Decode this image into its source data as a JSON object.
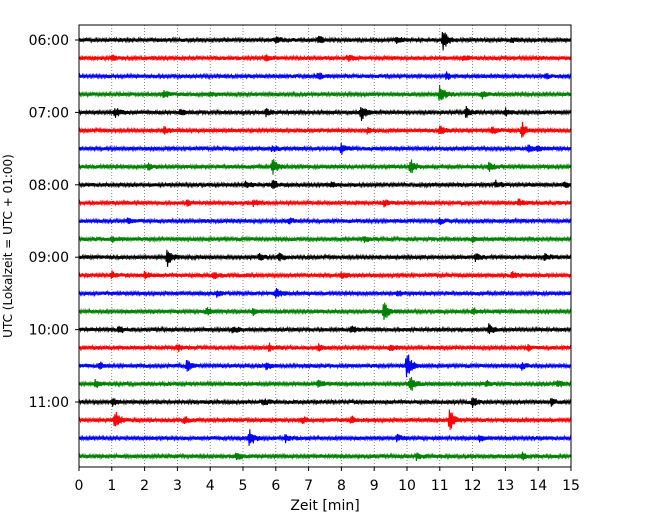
{
  "chart_data": {
    "type": "line",
    "title": "",
    "xlabel": "Zeit  [min]",
    "ylabel": "UTC (Lokalzeit = UTC + 01:00)",
    "xlim": [
      0,
      15
    ],
    "x_ticks": [
      "0",
      "1",
      "2",
      "3",
      "4",
      "5",
      "6",
      "7",
      "8",
      "9",
      "10",
      "11",
      "12",
      "13",
      "14",
      "15"
    ],
    "y_tick_labels": [
      "06:00",
      "07:00",
      "08:00",
      "09:00",
      "10:00",
      "11:00"
    ],
    "grid": "vertical dotted",
    "trace_colors": [
      "#000000",
      "#ff0000",
      "#0000ff",
      "#008000"
    ],
    "traces": [
      {
        "start": "06:00",
        "events": [
          [
            11.1,
            1.0
          ],
          [
            6.0,
            0.35
          ],
          [
            7.3,
            0.35
          ],
          [
            9.7,
            0.3
          ],
          [
            13.2,
            0.25
          ]
        ]
      },
      {
        "start": "06:15",
        "events": [
          [
            1.0,
            0.3
          ],
          [
            5.7,
            0.25
          ],
          [
            8.2,
            0.25
          ],
          [
            11.7,
            0.25
          ]
        ]
      },
      {
        "start": "06:30",
        "events": [
          [
            7.3,
            0.3
          ],
          [
            11.2,
            0.3
          ],
          [
            14.2,
            0.25
          ]
        ]
      },
      {
        "start": "06:45",
        "events": [
          [
            2.6,
            0.35
          ],
          [
            11.0,
            0.85
          ],
          [
            12.3,
            0.3
          ],
          [
            4.0,
            0.2
          ]
        ]
      },
      {
        "start": "07:00",
        "events": [
          [
            1.1,
            0.4
          ],
          [
            8.6,
            0.75
          ],
          [
            11.8,
            0.45
          ],
          [
            13.0,
            0.35
          ],
          [
            3.1,
            0.3
          ],
          [
            5.7,
            0.3
          ]
        ]
      },
      {
        "start": "07:15",
        "events": [
          [
            13.5,
            0.75
          ],
          [
            11.0,
            0.4
          ],
          [
            12.6,
            0.35
          ],
          [
            2.6,
            0.3
          ],
          [
            8.8,
            0.3
          ]
        ]
      },
      {
        "start": "07:30",
        "events": [
          [
            8.0,
            0.5
          ],
          [
            13.7,
            0.3
          ],
          [
            5.9,
            0.25
          ],
          [
            14.0,
            0.25
          ]
        ]
      },
      {
        "start": "07:45",
        "events": [
          [
            5.9,
            0.7
          ],
          [
            10.1,
            0.65
          ],
          [
            12.5,
            0.4
          ],
          [
            2.1,
            0.3
          ]
        ]
      },
      {
        "start": "08:00",
        "events": [
          [
            5.9,
            0.4
          ],
          [
            5.1,
            0.3
          ],
          [
            12.7,
            0.3
          ],
          [
            14.8,
            0.3
          ],
          [
            7.7,
            0.25
          ]
        ]
      },
      {
        "start": "08:15",
        "events": [
          [
            5.3,
            0.3
          ],
          [
            13.4,
            0.3
          ],
          [
            3.3,
            0.25
          ],
          [
            9.3,
            0.25
          ]
        ]
      },
      {
        "start": "08:30",
        "events": [
          [
            1.5,
            0.25
          ],
          [
            6.4,
            0.25
          ],
          [
            11.0,
            0.25
          ]
        ]
      },
      {
        "start": "08:45",
        "events": [
          [
            1.0,
            0.25
          ],
          [
            8.7,
            0.25
          ],
          [
            12.0,
            0.25
          ]
        ]
      },
      {
        "start": "09:00",
        "events": [
          [
            2.7,
            0.9
          ],
          [
            5.5,
            0.35
          ],
          [
            6.1,
            0.35
          ],
          [
            12.1,
            0.35
          ],
          [
            14.2,
            0.3
          ]
        ]
      },
      {
        "start": "09:15",
        "events": [
          [
            1.0,
            0.3
          ],
          [
            2.0,
            0.3
          ],
          [
            4.1,
            0.3
          ],
          [
            8.0,
            0.3
          ],
          [
            13.2,
            0.3
          ]
        ]
      },
      {
        "start": "09:30",
        "events": [
          [
            6.0,
            0.55
          ],
          [
            4.2,
            0.3
          ],
          [
            9.7,
            0.3
          ]
        ]
      },
      {
        "start": "09:45",
        "events": [
          [
            9.3,
            0.95
          ],
          [
            3.9,
            0.3
          ],
          [
            5.3,
            0.3
          ],
          [
            12.0,
            0.3
          ]
        ]
      },
      {
        "start": "10:00",
        "events": [
          [
            12.5,
            0.5
          ],
          [
            1.2,
            0.35
          ],
          [
            4.7,
            0.3
          ],
          [
            8.3,
            0.3
          ]
        ]
      },
      {
        "start": "10:15",
        "events": [
          [
            3.0,
            0.3
          ],
          [
            5.8,
            0.3
          ],
          [
            7.3,
            0.3
          ],
          [
            9.5,
            0.3
          ],
          [
            13.7,
            0.3
          ]
        ]
      },
      {
        "start": "10:30",
        "events": [
          [
            10.0,
            1.3
          ],
          [
            3.3,
            0.55
          ],
          [
            0.6,
            0.3
          ],
          [
            5.7,
            0.3
          ],
          [
            13.5,
            0.3
          ]
        ]
      },
      {
        "start": "10:45",
        "events": [
          [
            10.1,
            0.85
          ],
          [
            0.5,
            0.35
          ],
          [
            7.3,
            0.3
          ],
          [
            12.4,
            0.3
          ],
          [
            14.6,
            0.3
          ]
        ]
      },
      {
        "start": "11:00",
        "events": [
          [
            1.0,
            0.35
          ],
          [
            5.6,
            0.3
          ],
          [
            12.0,
            0.4
          ],
          [
            14.4,
            0.3
          ]
        ]
      },
      {
        "start": "11:15",
        "events": [
          [
            1.1,
            0.9
          ],
          [
            11.3,
            1.1
          ],
          [
            3.2,
            0.3
          ],
          [
            6.8,
            0.3
          ],
          [
            8.3,
            0.3
          ]
        ]
      },
      {
        "start": "11:30",
        "events": [
          [
            5.2,
            0.9
          ],
          [
            6.3,
            0.3
          ],
          [
            9.7,
            0.3
          ],
          [
            12.2,
            0.3
          ]
        ]
      },
      {
        "start": "11:45",
        "events": [
          [
            4.8,
            0.3
          ],
          [
            10.3,
            0.3
          ],
          [
            13.5,
            0.3
          ]
        ]
      }
    ]
  }
}
